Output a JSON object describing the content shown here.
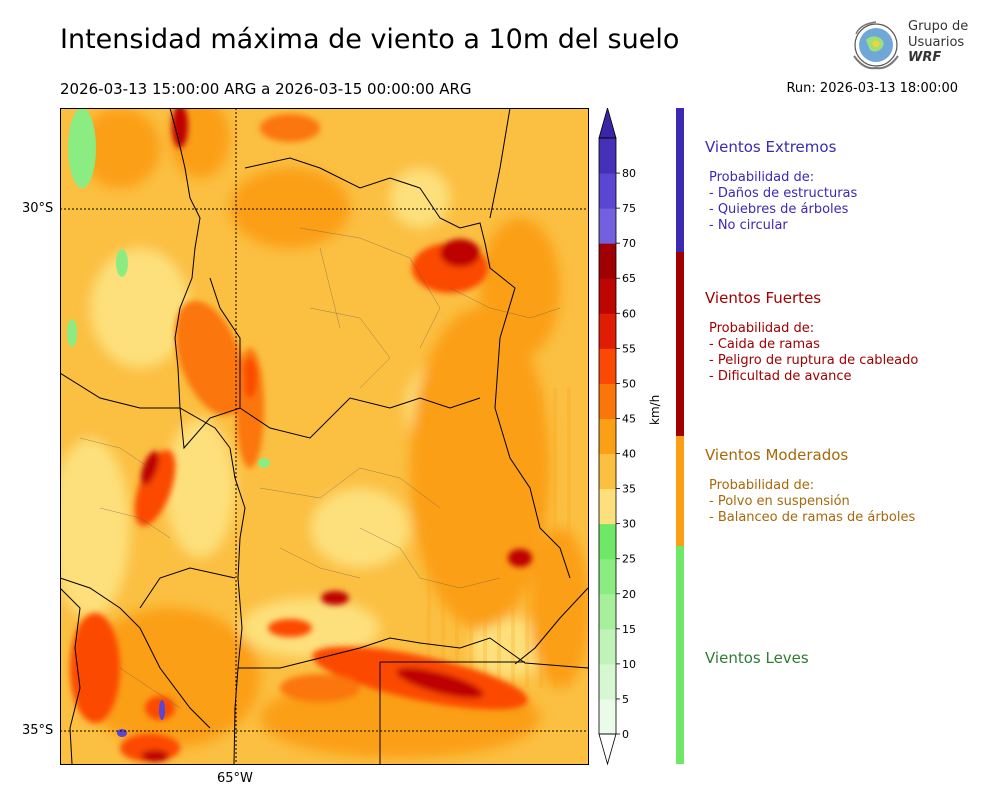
{
  "header": {
    "title": "Intensidad máxima de viento a 10m del suelo",
    "period": "2026-03-13 15:00:00 ARG  a  2026-03-15 00:00:00 ARG",
    "run": "Run: 2026-03-13 18:00:00"
  },
  "logo": {
    "line1": "Grupo de",
    "line2": "Usuarios",
    "line3": "WRF"
  },
  "map": {
    "lat_labels": [
      "30°S",
      "35°S"
    ],
    "lon_labels": [
      "65°W"
    ],
    "units": "km/h"
  },
  "colorbar": {
    "unit": "km/h",
    "ticks": [
      "0",
      "5",
      "10",
      "15",
      "20",
      "25",
      "30",
      "35",
      "40",
      "45",
      "50",
      "55",
      "60",
      "65",
      "70",
      "75",
      "80"
    ],
    "colors": [
      "#eafbe8",
      "#d6f7d2",
      "#bff3b8",
      "#a6f09c",
      "#8bec82",
      "#6fe868",
      "#fde07c",
      "#fbbf42",
      "#fb9f14",
      "#fb7608",
      "#fb4804",
      "#e01d04",
      "#bd0602",
      "#a00002",
      "#7360e0",
      "#5a46d0",
      "#4530b8"
    ],
    "extend_color": "#3a25a8"
  },
  "categories": [
    {
      "title": "Vientos Extremos",
      "color": "#3a2ab4",
      "lines": [
        "Probabilidad de:",
        "- Daños de estructuras",
        "- Quiebres de árboles",
        "- No circular"
      ]
    },
    {
      "title": "Vientos Fuertes",
      "color": "#a00000",
      "lines": [
        "Probabilidad de:",
        "- Caida de ramas",
        "- Peligro de ruptura de cableado",
        "- Dificultad de avance"
      ]
    },
    {
      "title": "Vientos Moderados",
      "color": "#a8680a",
      "lines": [
        "Probabilidad de:",
        "- Polvo en suspensión",
        "- Balanceo de ramas de árboles"
      ]
    },
    {
      "title": "Vientos Leves",
      "color": "#2e7d32",
      "lines": []
    }
  ]
}
